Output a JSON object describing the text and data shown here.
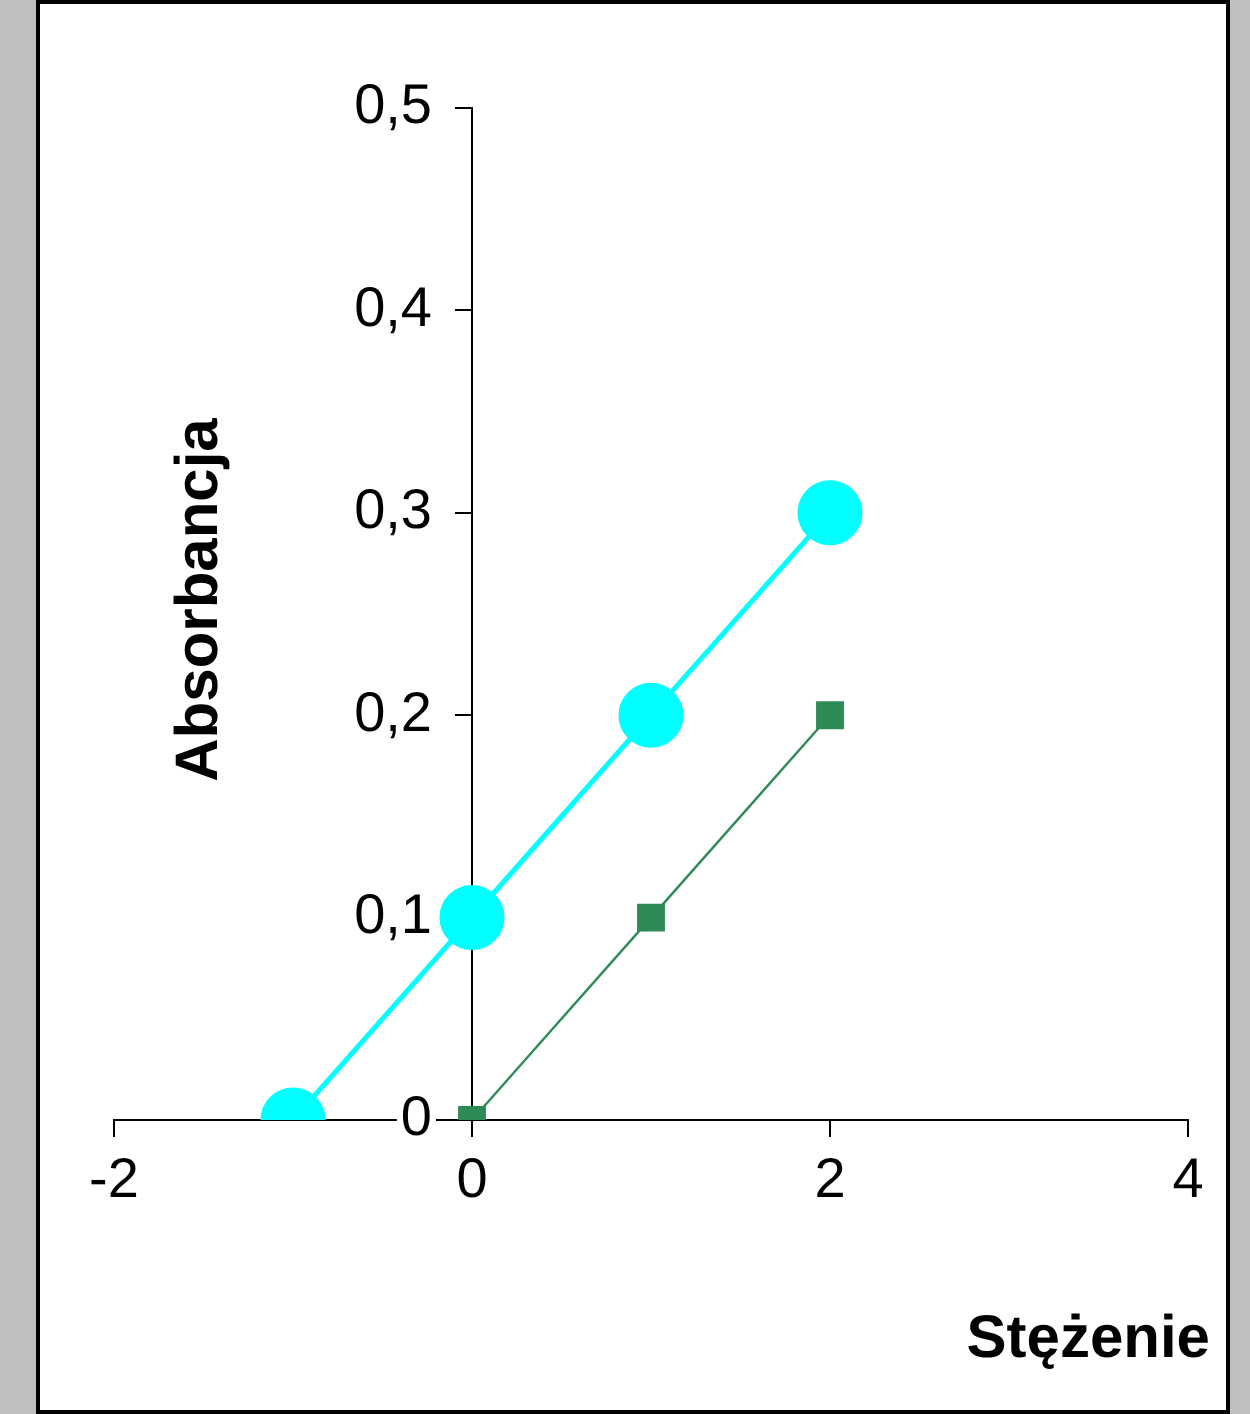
{
  "chart_data": {
    "type": "line",
    "xlabel": "Stężenie",
    "ylabel": "Absorbancja",
    "xlim": [
      -2,
      4
    ],
    "xticks": [
      -2,
      0,
      2,
      4
    ],
    "ylim": [
      0,
      0.5
    ],
    "yticks": [
      0,
      {
        "value": 0.1,
        "label": "0,1"
      },
      {
        "value": 0.2,
        "label": "0,2"
      },
      {
        "value": 0.3,
        "label": "0,3"
      },
      {
        "value": 0.4,
        "label": "0,4"
      },
      {
        "value": 0.5,
        "label": "0,5"
      }
    ],
    "grid": false,
    "legend": false,
    "series": [
      {
        "color": "#00ffff",
        "marker": "circle",
        "x": [
          -1,
          0,
          1,
          2
        ],
        "values": [
          0,
          0.1,
          0.2,
          0.3
        ]
      },
      {
        "color": "#2e8b57",
        "marker": "square",
        "x": [
          0,
          1,
          2
        ],
        "values": [
          0,
          0.1,
          0.2
        ]
      }
    ]
  }
}
